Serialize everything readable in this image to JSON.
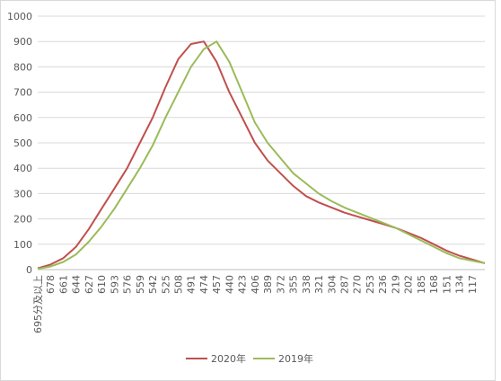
{
  "chart_data": {
    "type": "line",
    "categories": [
      "695分及以上",
      "678",
      "661",
      "644",
      "627",
      "610",
      "593",
      "576",
      "559",
      "542",
      "525",
      "508",
      "491",
      "474",
      "457",
      "440",
      "423",
      "406",
      "389",
      "372",
      "355",
      "338",
      "321",
      "304",
      "287",
      "270",
      "253",
      "236",
      "219",
      "202",
      "185",
      "168",
      "151",
      "134",
      "117",
      null
    ],
    "series": [
      {
        "name": "2020年",
        "color": "#c0504d",
        "values": [
          5,
          20,
          45,
          90,
          160,
          240,
          320,
          400,
          500,
          600,
          720,
          830,
          890,
          900,
          820,
          700,
          600,
          500,
          430,
          380,
          330,
          290,
          265,
          245,
          225,
          210,
          195,
          180,
          165,
          145,
          125,
          100,
          75,
          55,
          40,
          25
        ]
      },
      {
        "name": "2019年",
        "color": "#9bbb59",
        "values": [
          3,
          12,
          30,
          60,
          110,
          170,
          240,
          320,
          400,
          490,
          600,
          700,
          800,
          870,
          900,
          820,
          700,
          580,
          500,
          440,
          380,
          340,
          300,
          270,
          245,
          225,
          205,
          185,
          165,
          140,
          115,
          90,
          65,
          45,
          35,
          25
        ]
      }
    ],
    "ylim": [
      0,
      1000
    ],
    "yticks": [
      0,
      100,
      200,
      300,
      400,
      500,
      600,
      700,
      800,
      900,
      1000
    ],
    "grid": true,
    "legend": "bottom"
  }
}
